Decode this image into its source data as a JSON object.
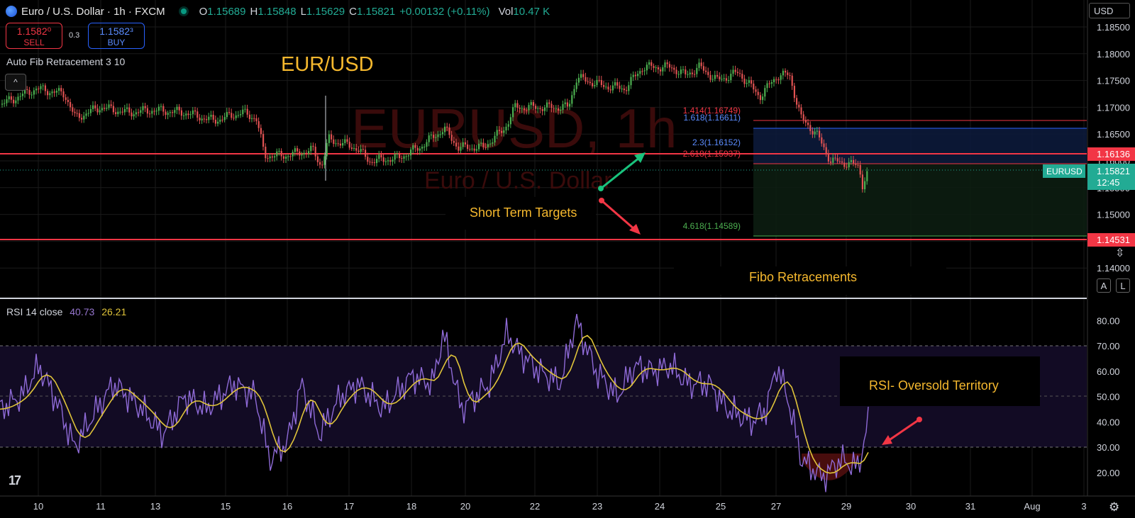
{
  "header": {
    "symbol": "Euro / U.S. Dollar",
    "interval": "1h",
    "exchange": "FXCM",
    "open_label": "O",
    "open": "1.15689",
    "high_label": "H",
    "high": "1.15848",
    "low_label": "L",
    "low": "1.15629",
    "close_label": "C",
    "close": "1.15821",
    "change": "+0.00132 (+0.11%)",
    "vol_label": "Vol",
    "vol": "10.47 K"
  },
  "trade": {
    "sell_price": "1.1582⁰",
    "sell_label": "SELL",
    "spread": "0.3",
    "buy_price": "1.1582³",
    "buy_label": "BUY"
  },
  "indicator_label": "Auto Fib Retracement 3 10",
  "collapse_icon": "^",
  "rsi": {
    "label": "RSI 14 close",
    "value": "40.73",
    "ma_value": "26.21"
  },
  "currency": "USD",
  "scale_buttons": [
    "A",
    "L"
  ],
  "watermark": {
    "title": "EURUSD, 1h",
    "subtitle": "Euro / U.S. Dollar"
  },
  "annotations": {
    "title": "EUR/USD",
    "short_term": "Short Term Targets",
    "fibo": "Fibo Retracements",
    "rsi_os": "RSI- Oversold Territory"
  },
  "fib_levels": [
    {
      "label": "1.414(1.16749)",
      "color": "#f23645",
      "price": 1.16749
    },
    {
      "label": "1.618(1.16611)",
      "color": "#2962ff",
      "price": 1.16611
    },
    {
      "label": "2.3(1.16152)",
      "color": "#2962ff",
      "price": 1.16152
    },
    {
      "label": "2.618(1.15937)",
      "color": "#f23645",
      "price": 1.15937
    },
    {
      "label": "4.618(1.14589)",
      "color": "#4caf50",
      "price": 1.14589
    }
  ],
  "horizontal_lines": [
    {
      "price": 1.16136,
      "label": "1.16136"
    },
    {
      "price": 1.14531,
      "label": "1.14531"
    }
  ],
  "last_price": {
    "ticker": "EURUSD",
    "price": "1.15821",
    "countdown": "12:45"
  },
  "price_axis": [
    "1.18500",
    "1.18000",
    "1.17500",
    "1.17000",
    "1.16500",
    "1.16000",
    "1.15500",
    "1.15000",
    "1.14500",
    "1.14000"
  ],
  "rsi_axis": [
    "80.00",
    "70.00",
    "60.00",
    "50.00",
    "40.00",
    "30.00",
    "20.00"
  ],
  "time_axis": [
    "10",
    "11",
    "13",
    "15",
    "16",
    "17",
    "18",
    "20",
    "22",
    "23",
    "24",
    "25",
    "27",
    "29",
    "30",
    "31",
    "Aug",
    "3"
  ],
  "chart_data": {
    "type": "line",
    "series": [
      {
        "name": "EURUSD",
        "x": [
          "10",
          "11",
          "13",
          "15",
          "16",
          "17",
          "18",
          "20",
          "22",
          "23",
          "24",
          "25",
          "27",
          "29"
        ],
        "values": [
          1.1735,
          1.17,
          1.1695,
          1.169,
          1.1605,
          1.1625,
          1.1595,
          1.162,
          1.17,
          1.175,
          1.1765,
          1.1755,
          1.1755,
          1.1582
        ]
      },
      {
        "name": "RSI",
        "x": [
          "10",
          "11",
          "13",
          "15",
          "16",
          "17",
          "18",
          "20",
          "22",
          "23",
          "24",
          "25",
          "27",
          "29"
        ],
        "values": [
          55,
          40,
          50,
          45,
          30,
          55,
          45,
          65,
          75,
          60,
          65,
          55,
          60,
          40
        ]
      }
    ]
  }
}
